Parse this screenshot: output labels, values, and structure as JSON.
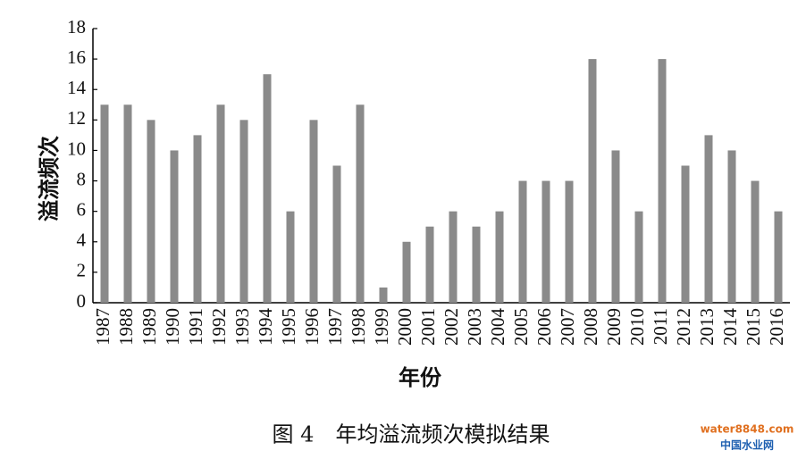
{
  "chart_data": {
    "type": "bar",
    "y_label": "溢流频次",
    "x_label": "年份",
    "caption": "图 4　年均溢流频次模拟结果",
    "categories": [
      "1987",
      "1988",
      "1989",
      "1990",
      "1991",
      "1992",
      "1993",
      "1994",
      "1995",
      "1996",
      "1997",
      "1998",
      "1999",
      "2000",
      "2001",
      "2002",
      "2003",
      "2004",
      "2005",
      "2006",
      "2007",
      "2008",
      "2009",
      "2010",
      "2011",
      "2012",
      "2013",
      "2014",
      "2015",
      "2016"
    ],
    "values": [
      13,
      13,
      12,
      10,
      11,
      13,
      12,
      15,
      6,
      12,
      9,
      13,
      1,
      4,
      5,
      6,
      5,
      6,
      8,
      8,
      8,
      16,
      10,
      6,
      16,
      9,
      11,
      10,
      8,
      6
    ],
    "color": "#8a8a8a",
    "ylim": [
      0,
      18
    ],
    "yticks": [
      0,
      2,
      4,
      6,
      8,
      10,
      12,
      14,
      16,
      18
    ],
    "watermark": [
      "water8848.com",
      "中国水业网"
    ]
  }
}
